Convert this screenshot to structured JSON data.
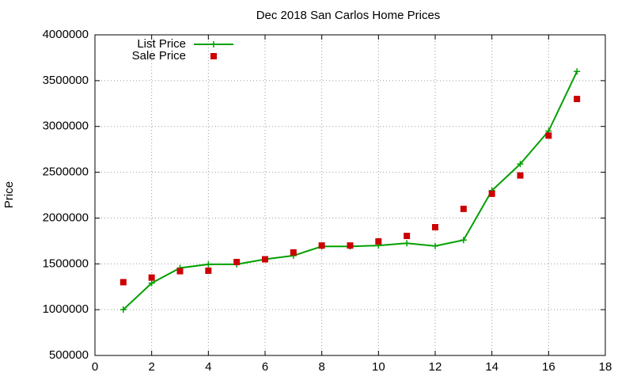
{
  "chart_data": {
    "type": "line",
    "title": "Dec 2018 San Carlos Home Prices",
    "y_label": "Price",
    "x": [
      1,
      2,
      3,
      4,
      5,
      6,
      7,
      8,
      9,
      10,
      11,
      12,
      13,
      14,
      15,
      16,
      17
    ],
    "series": [
      {
        "name": "List Price",
        "color": "#00a000",
        "style": "line-cross",
        "values": [
          1000000,
          1290000,
          1455000,
          1495000,
          1495000,
          1550000,
          1590000,
          1690000,
          1690000,
          1700000,
          1725000,
          1695000,
          1760000,
          2300000,
          2590000,
          2950000,
          3600000
        ]
      },
      {
        "name": "Sale Price",
        "color": "#cc0000",
        "style": "square",
        "values": [
          1300000,
          1350000,
          1420000,
          1425000,
          1520000,
          1550000,
          1625000,
          1700000,
          1700000,
          1745000,
          1805000,
          1900000,
          2100000,
          2265000,
          2465000,
          2900000,
          3300000
        ]
      }
    ],
    "xlim": [
      0,
      18
    ],
    "xticks": [
      0,
      2,
      4,
      6,
      8,
      10,
      12,
      14,
      16,
      18
    ],
    "ylim": [
      500000,
      4000000
    ],
    "yticks": [
      500000,
      1000000,
      1500000,
      2000000,
      2500000,
      3000000,
      3500000,
      4000000
    ],
    "grid": true,
    "legend": "top-left"
  }
}
